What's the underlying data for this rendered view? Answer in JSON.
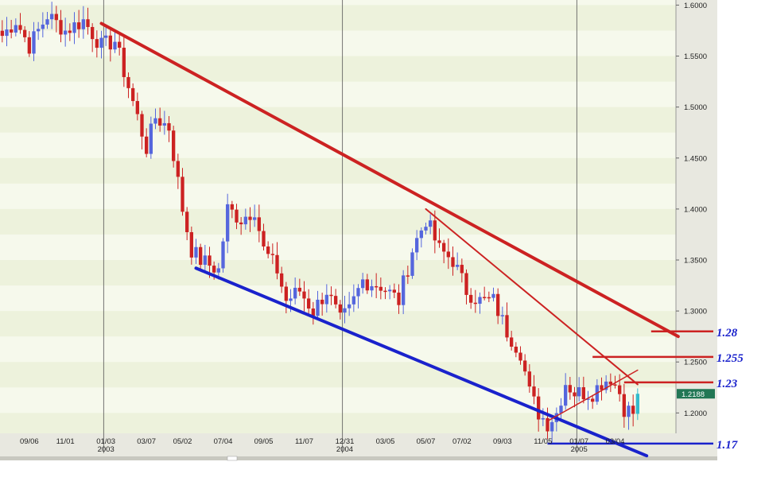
{
  "chart_data": {
    "type": "candlestick",
    "y_axis": {
      "position": "right",
      "ylim": [
        1.18,
        1.605
      ],
      "ticks": [
        "1.6000",
        "1.5500",
        "1.5000",
        "1.4500",
        "1.4000",
        "1.3500",
        "1.3000",
        "1.2500",
        "1.2000"
      ],
      "tick_values": [
        1.6,
        1.55,
        1.5,
        1.45,
        1.4,
        1.35,
        1.3,
        1.25,
        1.2
      ]
    },
    "x_axis": {
      "n_bars": 150,
      "ticks": [
        {
          "label": "09/06",
          "bar": 6
        },
        {
          "label": "11/01",
          "bar": 14
        },
        {
          "label": "01/03",
          "bar": 23,
          "year": "2003"
        },
        {
          "label": "03/07",
          "bar": 32
        },
        {
          "label": "05/02",
          "bar": 40
        },
        {
          "label": "07/04",
          "bar": 49
        },
        {
          "label": "09/05",
          "bar": 58
        },
        {
          "label": "11/07",
          "bar": 67
        },
        {
          "label": "12/31",
          "bar": 76,
          "year": "2004"
        },
        {
          "label": "03/05",
          "bar": 85
        },
        {
          "label": "05/07",
          "bar": 94
        },
        {
          "label": "07/02",
          "bar": 102
        },
        {
          "label": "09/03",
          "bar": 111
        },
        {
          "label": "11/05",
          "bar": 120
        },
        {
          "label": "01/07",
          "bar": 128,
          "year": "2005"
        },
        {
          "label": "03/04",
          "bar": 136
        }
      ]
    },
    "year_separators": [
      23,
      76,
      128
    ],
    "anchors": [
      [
        0,
        1.57
      ],
      [
        3,
        1.585
      ],
      [
        6,
        1.56
      ],
      [
        10,
        1.59
      ],
      [
        14,
        1.575
      ],
      [
        18,
        1.585
      ],
      [
        22,
        1.56
      ],
      [
        25,
        1.565
      ],
      [
        28,
        1.52
      ],
      [
        32,
        1.46
      ],
      [
        34,
        1.49
      ],
      [
        37,
        1.48
      ],
      [
        40,
        1.4
      ],
      [
        42,
        1.36
      ],
      [
        44,
        1.35
      ],
      [
        48,
        1.34
      ],
      [
        50,
        1.4
      ],
      [
        53,
        1.39
      ],
      [
        56,
        1.4
      ],
      [
        58,
        1.36
      ],
      [
        61,
        1.34
      ],
      [
        63,
        1.31
      ],
      [
        66,
        1.32
      ],
      [
        69,
        1.3
      ],
      [
        72,
        1.32
      ],
      [
        75,
        1.29
      ],
      [
        77,
        1.3
      ],
      [
        80,
        1.33
      ],
      [
        84,
        1.325
      ],
      [
        88,
        1.31
      ],
      [
        91,
        1.36
      ],
      [
        94,
        1.39
      ],
      [
        97,
        1.36
      ],
      [
        100,
        1.35
      ],
      [
        103,
        1.32
      ],
      [
        106,
        1.31
      ],
      [
        109,
        1.31
      ],
      [
        112,
        1.28
      ],
      [
        115,
        1.26
      ],
      [
        117,
        1.22
      ],
      [
        119,
        1.2
      ],
      [
        121,
        1.19
      ],
      [
        123,
        1.2
      ],
      [
        125,
        1.23
      ],
      [
        127,
        1.22
      ],
      [
        129,
        1.22
      ],
      [
        131,
        1.22
      ],
      [
        133,
        1.23
      ],
      [
        135,
        1.235
      ],
      [
        137,
        1.22
      ],
      [
        138,
        1.205
      ],
      [
        140,
        1.2
      ],
      [
        141,
        1.2188
      ]
    ],
    "colors": {
      "up": "#5566dd",
      "down": "#cc2222",
      "last": "#33bbcc"
    },
    "trendlines": [
      {
        "from": [
          22,
          1.582
        ],
        "to": [
          150,
          1.275
        ],
        "color": "#cc2222",
        "width": 4
      },
      {
        "from": [
          43,
          1.342
        ],
        "to": [
          143,
          1.158
        ],
        "color": "#1a22cc",
        "width": 4
      },
      {
        "from": [
          94,
          1.4
        ],
        "to": [
          141,
          1.228
        ],
        "color": "#cc2222",
        "width": 2
      },
      {
        "from": [
          121,
          1.192
        ],
        "to": [
          141,
          1.242
        ],
        "color": "#cc2222",
        "width": 1.5
      }
    ],
    "levels": [
      {
        "value": 1.28,
        "label": "1.28",
        "color": "#cc2222",
        "from_bar": 144
      },
      {
        "value": 1.255,
        "label": "1.255",
        "color": "#cc2222",
        "from_bar": 131
      },
      {
        "value": 1.23,
        "label": "1.23",
        "color": "#cc2222",
        "from_bar": 138
      },
      {
        "value": 1.17,
        "label": "1.17",
        "color": "#1a22cc",
        "from_bar": 121
      }
    ],
    "annotation_color": "#1a22cc",
    "last_price": {
      "label": "1.2188",
      "value": 1.2188,
      "color": "#227755"
    }
  }
}
